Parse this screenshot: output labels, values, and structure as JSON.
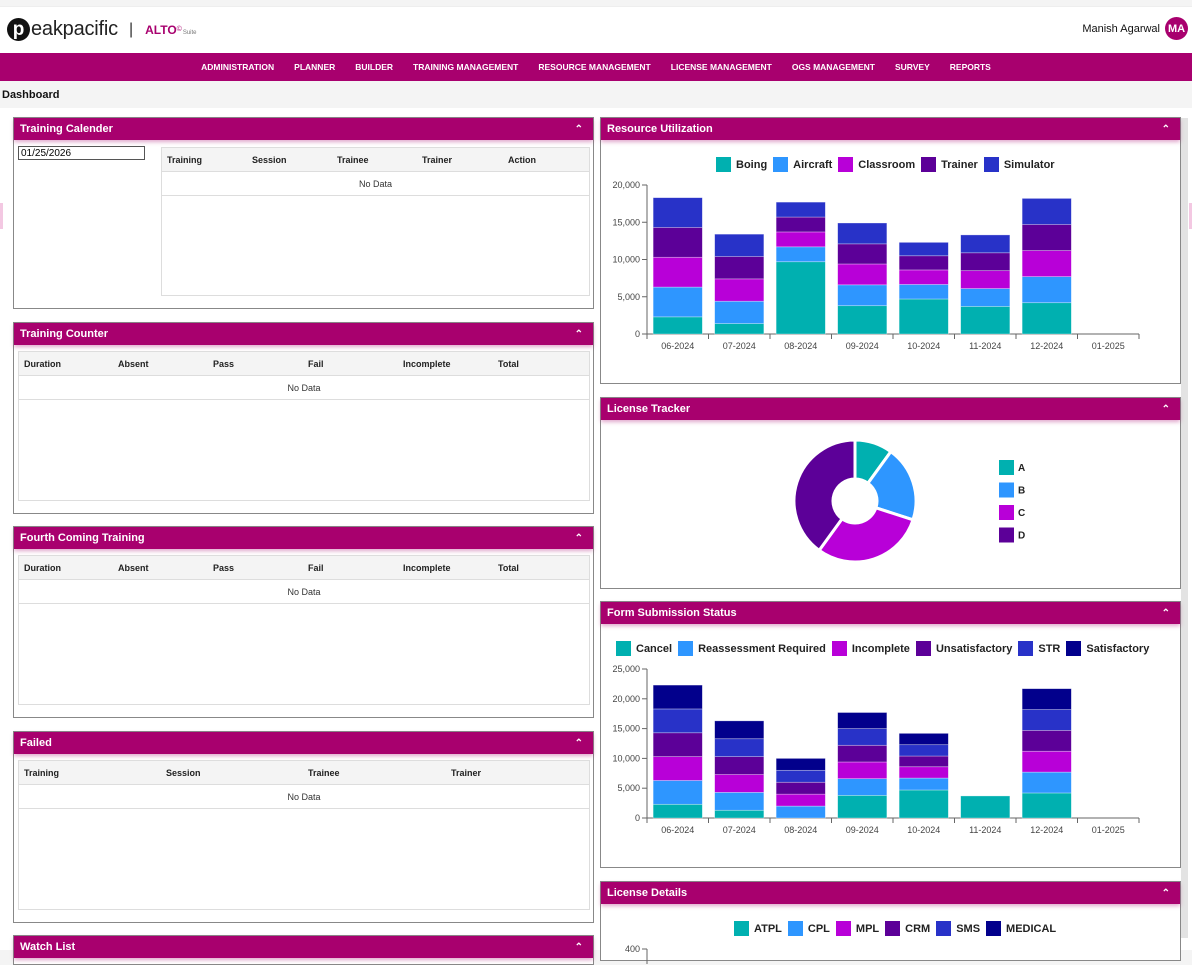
{
  "header": {
    "logo_letter": "p",
    "logo_text": "eakpacific",
    "separator": "|",
    "product": "ALTO",
    "product_sup": "©",
    "product_suffix": "Suite",
    "user_name": "Manish Agarwal",
    "user_initials": "MA"
  },
  "nav": {
    "items": [
      "ADMINISTRATION",
      "PLANNER",
      "BUILDER",
      "TRAINING MANAGEMENT",
      "RESOURCE MANAGEMENT",
      "LICENSE MANAGEMENT",
      "OGS MANAGEMENT",
      "SURVEY",
      "REPORTS"
    ]
  },
  "breadcrumb": "Dashboard",
  "colors": {
    "brand": "#a8006e",
    "teal": "#00b0b0",
    "sky": "#2e96ff",
    "magenta": "#b800d8",
    "purple": "#5c0098",
    "blue": "#2832c8",
    "navy": "#02008c"
  },
  "panels": {
    "training_calendar": {
      "title": "Training Calender",
      "date_value": "01/25/2026",
      "columns": [
        "Training",
        "Session",
        "Trainee",
        "Trainer",
        "Action"
      ],
      "empty_text": "No Data"
    },
    "training_counter": {
      "title": "Training Counter",
      "columns": [
        "Duration",
        "Absent",
        "Pass",
        "Fail",
        "Incomplete",
        "Total"
      ],
      "empty_text": "No Data"
    },
    "forthcoming_training": {
      "title": "Fourth Coming Training",
      "columns": [
        "Duration",
        "Absent",
        "Pass",
        "Fail",
        "Incomplete",
        "Total"
      ],
      "empty_text": "No Data"
    },
    "failed": {
      "title": "Failed",
      "columns": [
        "Training",
        "Session",
        "Trainee",
        "Trainer"
      ],
      "empty_text": "No Data"
    },
    "watch_list": {
      "title": "Watch List"
    },
    "resource_utilization": {
      "title": "Resource Utilization"
    },
    "license_tracker": {
      "title": "License Tracker"
    },
    "form_submission": {
      "title": "Form Submission Status"
    },
    "license_details": {
      "title": "License Details"
    }
  },
  "chart_data": [
    {
      "id": "resource_utilization",
      "type": "bar",
      "stacked": true,
      "title": "Resource Utilization",
      "categories": [
        "06-2024",
        "07-2024",
        "08-2024",
        "09-2024",
        "10-2024",
        "11-2024",
        "12-2024",
        "01-2025"
      ],
      "ylim": [
        0,
        20000
      ],
      "yticks": [
        "0",
        "5,000",
        "10,000",
        "15,000",
        "20,000"
      ],
      "ytick_values": [
        0,
        5000,
        10000,
        15000,
        20000
      ],
      "legend_position": "top-center",
      "series": [
        {
          "name": "Boing",
          "color": "#00b0b0",
          "values": [
            2300,
            1400,
            9700,
            3800,
            4700,
            3700,
            4200,
            0
          ]
        },
        {
          "name": "Aircraft",
          "color": "#2e96ff",
          "values": [
            4000,
            3000,
            2000,
            2800,
            1950,
            2400,
            3500,
            0
          ]
        },
        {
          "name": "Classroom",
          "color": "#b800d8",
          "values": [
            4000,
            3000,
            2000,
            2800,
            1950,
            2400,
            3500,
            0
          ]
        },
        {
          "name": "Trainer",
          "color": "#5c0098",
          "values": [
            4000,
            3000,
            2000,
            2700,
            1900,
            2400,
            3500,
            0
          ]
        },
        {
          "name": "Simulator",
          "color": "#2832c8",
          "values": [
            4000,
            3000,
            2000,
            2800,
            1800,
            2400,
            3500,
            0
          ]
        }
      ]
    },
    {
      "id": "license_tracker",
      "type": "pie",
      "donut": true,
      "title": "License Tracker",
      "legend_position": "right",
      "labels": [
        "A",
        "B",
        "C",
        "D"
      ],
      "values": [
        10,
        20,
        30,
        40
      ],
      "colors": [
        "#00b0b0",
        "#2e96ff",
        "#b800d8",
        "#5c0098"
      ]
    },
    {
      "id": "form_submission",
      "type": "bar",
      "stacked": true,
      "title": "Form Submission Status",
      "categories": [
        "06-2024",
        "07-2024",
        "08-2024",
        "09-2024",
        "10-2024",
        "11-2024",
        "12-2024",
        "01-2025"
      ],
      "ylim": [
        0,
        25000
      ],
      "yticks": [
        "0",
        "5,000",
        "10,000",
        "15,000",
        "20,000",
        "25,000"
      ],
      "ytick_values": [
        0,
        5000,
        10000,
        15000,
        20000,
        25000
      ],
      "legend_position": "top-center",
      "series": [
        {
          "name": "Cancel",
          "color": "#00b0b0",
          "values": [
            2300,
            1300,
            0,
            3800,
            4700,
            3700,
            4200,
            0
          ]
        },
        {
          "name": "Reassessment Required",
          "color": "#2e96ff",
          "values": [
            4000,
            3000,
            2000,
            2800,
            2000,
            0,
            3500,
            0
          ]
        },
        {
          "name": "Incomplete",
          "color": "#b800d8",
          "values": [
            4000,
            3000,
            2000,
            2800,
            1900,
            0,
            3500,
            0
          ]
        },
        {
          "name": "Unsatisfactory",
          "color": "#5c0098",
          "values": [
            4000,
            3000,
            2000,
            2800,
            1800,
            0,
            3500,
            0
          ]
        },
        {
          "name": "STR",
          "color": "#2832c8",
          "values": [
            4000,
            3000,
            2000,
            2800,
            1900,
            0,
            3500,
            0
          ]
        },
        {
          "name": "Satisfactory",
          "color": "#02008c",
          "values": [
            4000,
            3000,
            2000,
            2700,
            1900,
            0,
            3500,
            0
          ]
        }
      ]
    },
    {
      "id": "license_details",
      "type": "bar",
      "stacked": true,
      "title": "License Details",
      "legend_position": "top-center",
      "yticks": [
        "400"
      ],
      "series": [
        {
          "name": "ATPL",
          "color": "#00b0b0"
        },
        {
          "name": "CPL",
          "color": "#2e96ff"
        },
        {
          "name": "MPL",
          "color": "#b800d8"
        },
        {
          "name": "CRM",
          "color": "#5c0098"
        },
        {
          "name": "SMS",
          "color": "#2832c8"
        },
        {
          "name": "MEDICAL",
          "color": "#02008c"
        }
      ]
    }
  ]
}
